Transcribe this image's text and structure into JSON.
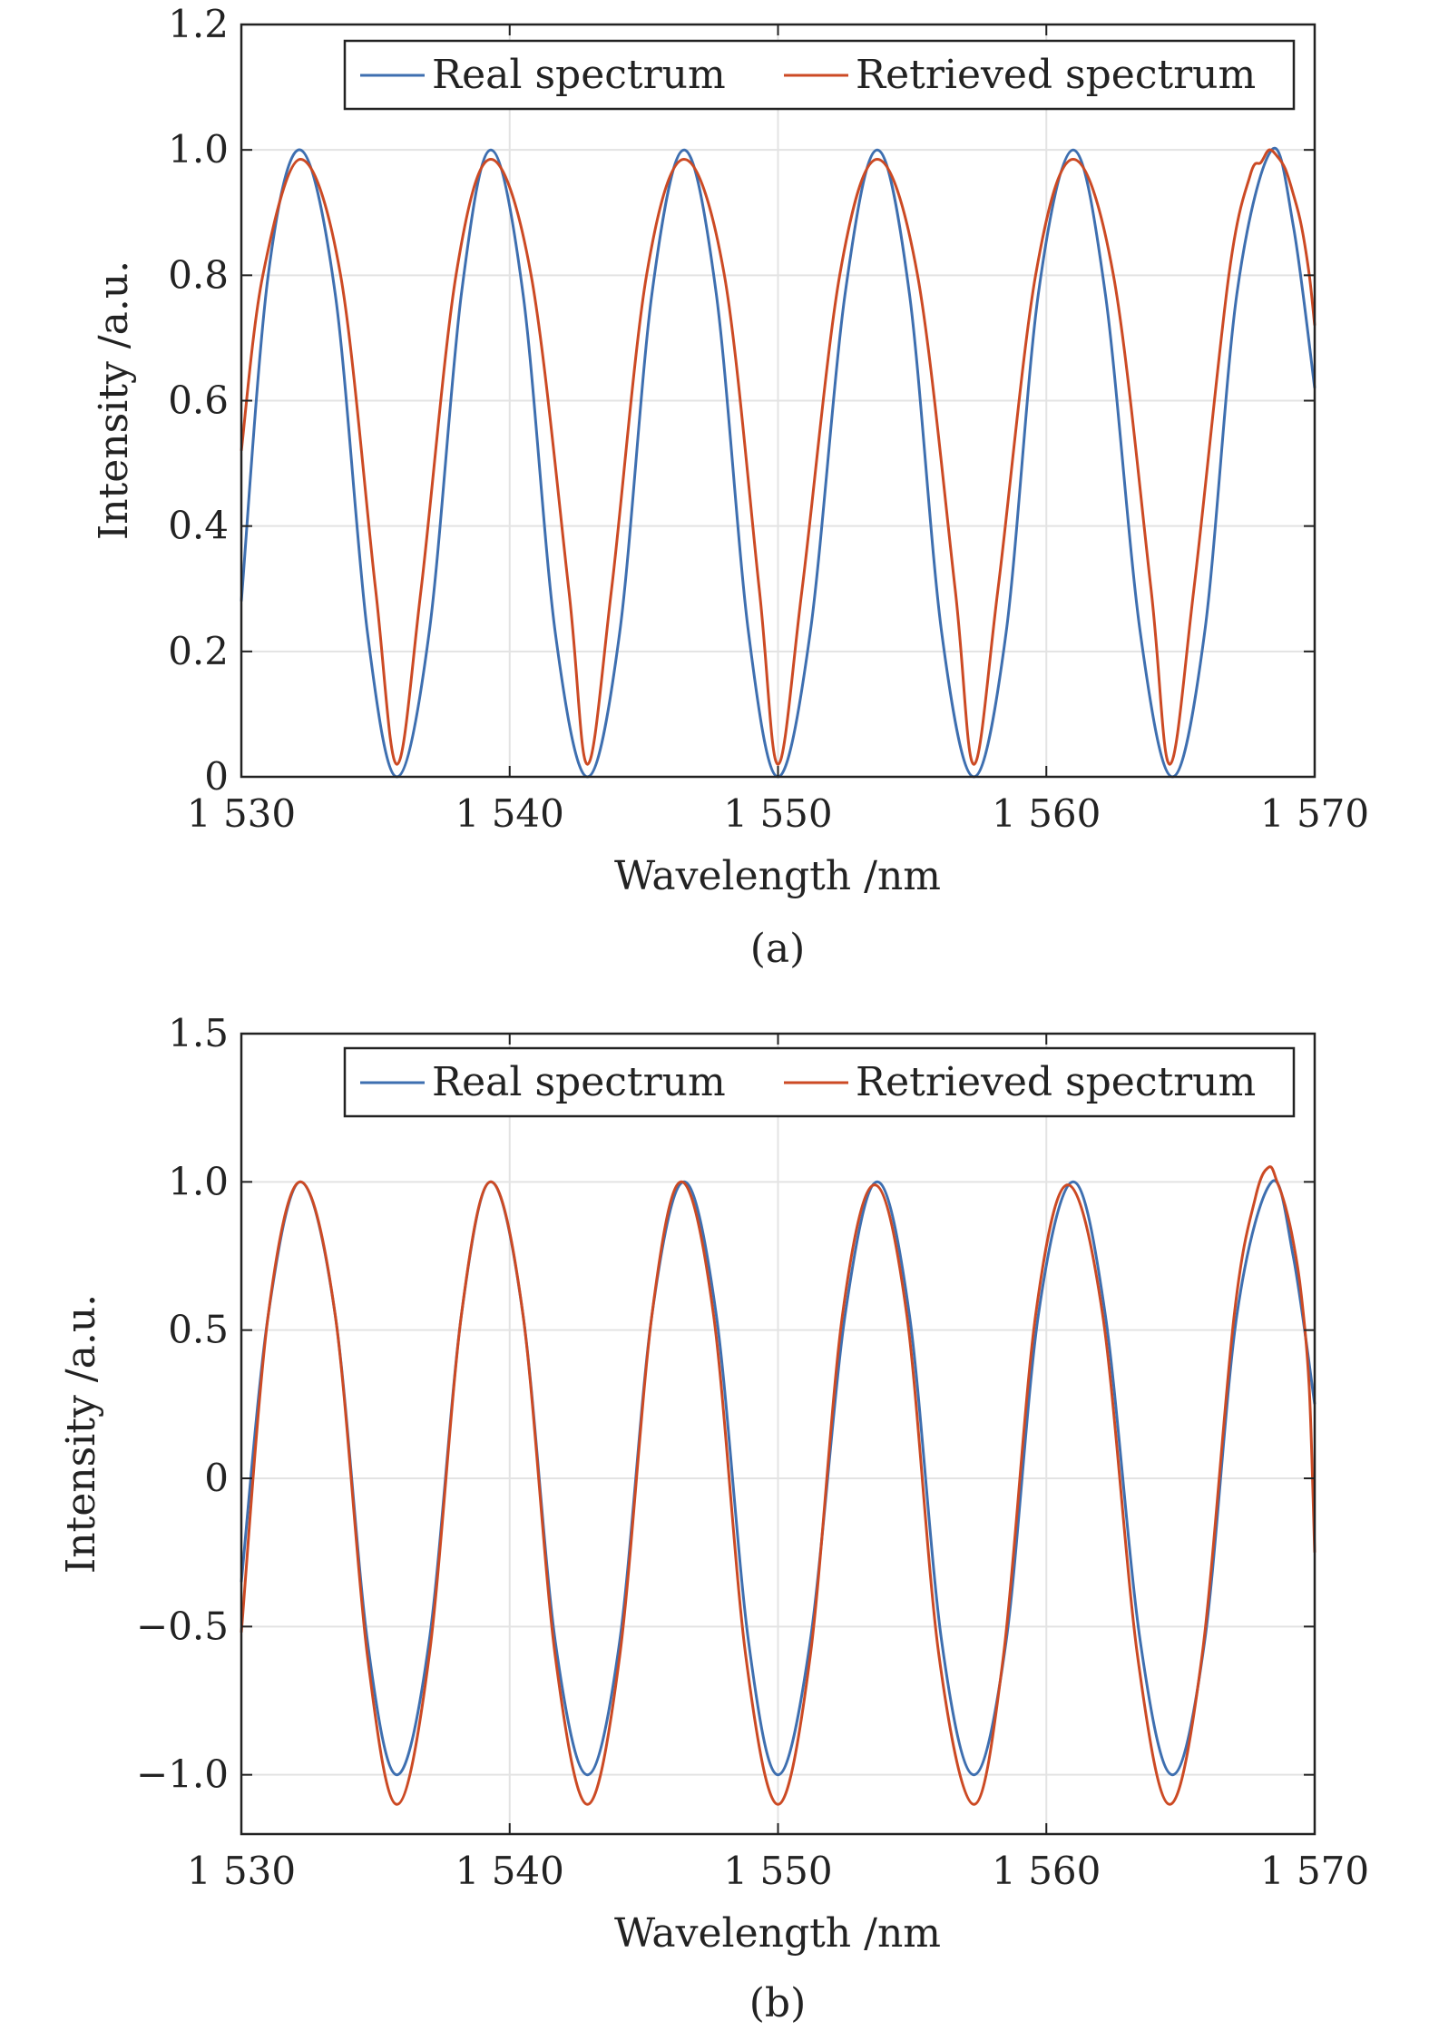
{
  "figure": {
    "caption_a": "(a)",
    "caption_b": "(b)"
  },
  "chart_data": [
    {
      "type": "line",
      "panel": "(a)",
      "xlabel": "Wavelength /nm",
      "ylabel": "Intensity /a.u.",
      "xlim": [
        1530,
        1570
      ],
      "ylim": [
        0,
        1.2
      ],
      "xticks": [
        1530,
        1540,
        1550,
        1560,
        1570
      ],
      "xtick_labels": [
        "1 530",
        "1 540",
        "1 550",
        "1 560",
        "1 570"
      ],
      "yticks": [
        0,
        0.2,
        0.4,
        0.6,
        0.8,
        1.0,
        1.2
      ],
      "ytick_labels": [
        "0",
        "0.2",
        "0.4",
        "0.6",
        "0.8",
        "1.0",
        "1.2"
      ],
      "grid": true,
      "legend_position": "top-right",
      "legend": [
        "Real spectrum",
        "Retrieved spectrum"
      ],
      "series": [
        {
          "name": "Real spectrum",
          "color": "#3E6FB0",
          "x": [
            1530.0,
            1531.0,
            1532.2,
            1533.5,
            1534.7,
            1535.8,
            1537.0,
            1538.2,
            1539.3,
            1540.5,
            1541.7,
            1542.9,
            1544.1,
            1545.3,
            1546.5,
            1547.7,
            1548.9,
            1550.0,
            1551.2,
            1552.5,
            1553.7,
            1554.9,
            1556.1,
            1557.3,
            1558.5,
            1559.7,
            1561.0,
            1562.2,
            1563.5,
            1564.7,
            1565.9,
            1567.1,
            1568.4,
            1569.2,
            1570.0
          ],
          "values": [
            0.28,
            0.8,
            1.0,
            0.77,
            0.23,
            0.0,
            0.23,
            0.77,
            1.0,
            0.77,
            0.23,
            0.0,
            0.23,
            0.77,
            1.0,
            0.77,
            0.23,
            0.0,
            0.23,
            0.77,
            1.0,
            0.77,
            0.23,
            0.0,
            0.23,
            0.77,
            1.0,
            0.77,
            0.23,
            0.0,
            0.23,
            0.77,
            1.0,
            0.88,
            0.62
          ]
        },
        {
          "name": "Retrieved spectrum",
          "color": "#CC4A24",
          "x": [
            1530.0,
            1530.8,
            1532.2,
            1533.7,
            1535.0,
            1535.8,
            1536.7,
            1538.0,
            1539.3,
            1540.8,
            1542.2,
            1542.9,
            1543.8,
            1545.1,
            1546.5,
            1548.0,
            1549.3,
            1550.0,
            1550.9,
            1552.3,
            1553.7,
            1555.2,
            1556.6,
            1557.3,
            1558.2,
            1559.6,
            1561.0,
            1562.5,
            1563.9,
            1564.6,
            1565.5,
            1566.8,
            1567.6,
            1568.0,
            1568.3,
            1568.6,
            1568.9,
            1569.2,
            1569.5,
            1569.8,
            1570.0
          ],
          "values": [
            0.52,
            0.8,
            0.985,
            0.8,
            0.3,
            0.02,
            0.3,
            0.8,
            0.985,
            0.8,
            0.3,
            0.02,
            0.3,
            0.8,
            0.985,
            0.8,
            0.3,
            0.02,
            0.3,
            0.8,
            0.985,
            0.8,
            0.3,
            0.02,
            0.3,
            0.8,
            0.985,
            0.8,
            0.3,
            0.02,
            0.3,
            0.8,
            0.96,
            0.98,
            1.0,
            0.99,
            0.97,
            0.93,
            0.88,
            0.8,
            0.72
          ]
        }
      ]
    },
    {
      "type": "line",
      "panel": "(b)",
      "xlabel": "Wavelength /nm",
      "ylabel": "Intensity /a.u.",
      "xlim": [
        1530,
        1570
      ],
      "ylim": [
        -1.2,
        1.5
      ],
      "xticks": [
        1530,
        1540,
        1550,
        1560,
        1570
      ],
      "xtick_labels": [
        "1 530",
        "1 540",
        "1 550",
        "1 560",
        "1 570"
      ],
      "yticks": [
        -1.0,
        -0.5,
        0,
        0.5,
        1.0,
        1.5
      ],
      "ytick_labels": [
        "−1.0",
        "−0.5",
        "0",
        "0.5",
        "1.0",
        "1.5"
      ],
      "grid": true,
      "legend_position": "top-right",
      "legend": [
        "Real spectrum",
        "Retrieved spectrum"
      ],
      "series": [
        {
          "name": "Real spectrum",
          "color": "#3E6FB0",
          "x": [
            1530.0,
            1531.0,
            1532.2,
            1533.5,
            1534.7,
            1535.8,
            1537.0,
            1538.2,
            1539.3,
            1540.5,
            1541.7,
            1542.9,
            1544.1,
            1545.3,
            1546.5,
            1547.7,
            1548.9,
            1550.0,
            1551.2,
            1552.5,
            1553.7,
            1554.9,
            1556.1,
            1557.3,
            1558.5,
            1559.7,
            1561.0,
            1562.2,
            1563.5,
            1564.7,
            1565.9,
            1567.1,
            1568.4,
            1569.2,
            1570.0
          ],
          "values": [
            -0.35,
            0.55,
            1.0,
            0.55,
            -0.55,
            -1.0,
            -0.55,
            0.55,
            1.0,
            0.55,
            -0.55,
            -1.0,
            -0.55,
            0.55,
            1.0,
            0.55,
            -0.55,
            -1.0,
            -0.55,
            0.55,
            1.0,
            0.55,
            -0.55,
            -1.0,
            -0.55,
            0.55,
            1.0,
            0.55,
            -0.55,
            -1.0,
            -0.55,
            0.55,
            1.0,
            0.75,
            0.25
          ]
        },
        {
          "name": "Retrieved spectrum",
          "color": "#CC4A24",
          "x": [
            1530.0,
            1531.0,
            1532.2,
            1533.5,
            1534.7,
            1535.8,
            1537.0,
            1538.2,
            1539.3,
            1540.5,
            1541.7,
            1542.9,
            1544.1,
            1545.3,
            1546.4,
            1547.6,
            1548.8,
            1550.0,
            1551.2,
            1552.4,
            1553.6,
            1554.8,
            1556.0,
            1557.3,
            1558.4,
            1559.6,
            1560.8,
            1562.1,
            1563.4,
            1564.6,
            1565.8,
            1567.0,
            1567.8,
            1568.3,
            1568.6,
            1568.9,
            1569.2,
            1569.5,
            1569.8,
            1570.0
          ],
          "values": [
            -0.52,
            0.55,
            1.0,
            0.55,
            -0.6,
            -1.1,
            -0.6,
            0.55,
            1.0,
            0.55,
            -0.6,
            -1.1,
            -0.6,
            0.55,
            1.0,
            0.55,
            -0.6,
            -1.1,
            -0.6,
            0.55,
            0.99,
            0.55,
            -0.6,
            -1.1,
            -0.6,
            0.55,
            0.99,
            0.55,
            -0.6,
            -1.1,
            -0.6,
            0.55,
            0.95,
            1.05,
            1.0,
            0.92,
            0.8,
            0.62,
            0.3,
            -0.25
          ]
        }
      ]
    }
  ]
}
